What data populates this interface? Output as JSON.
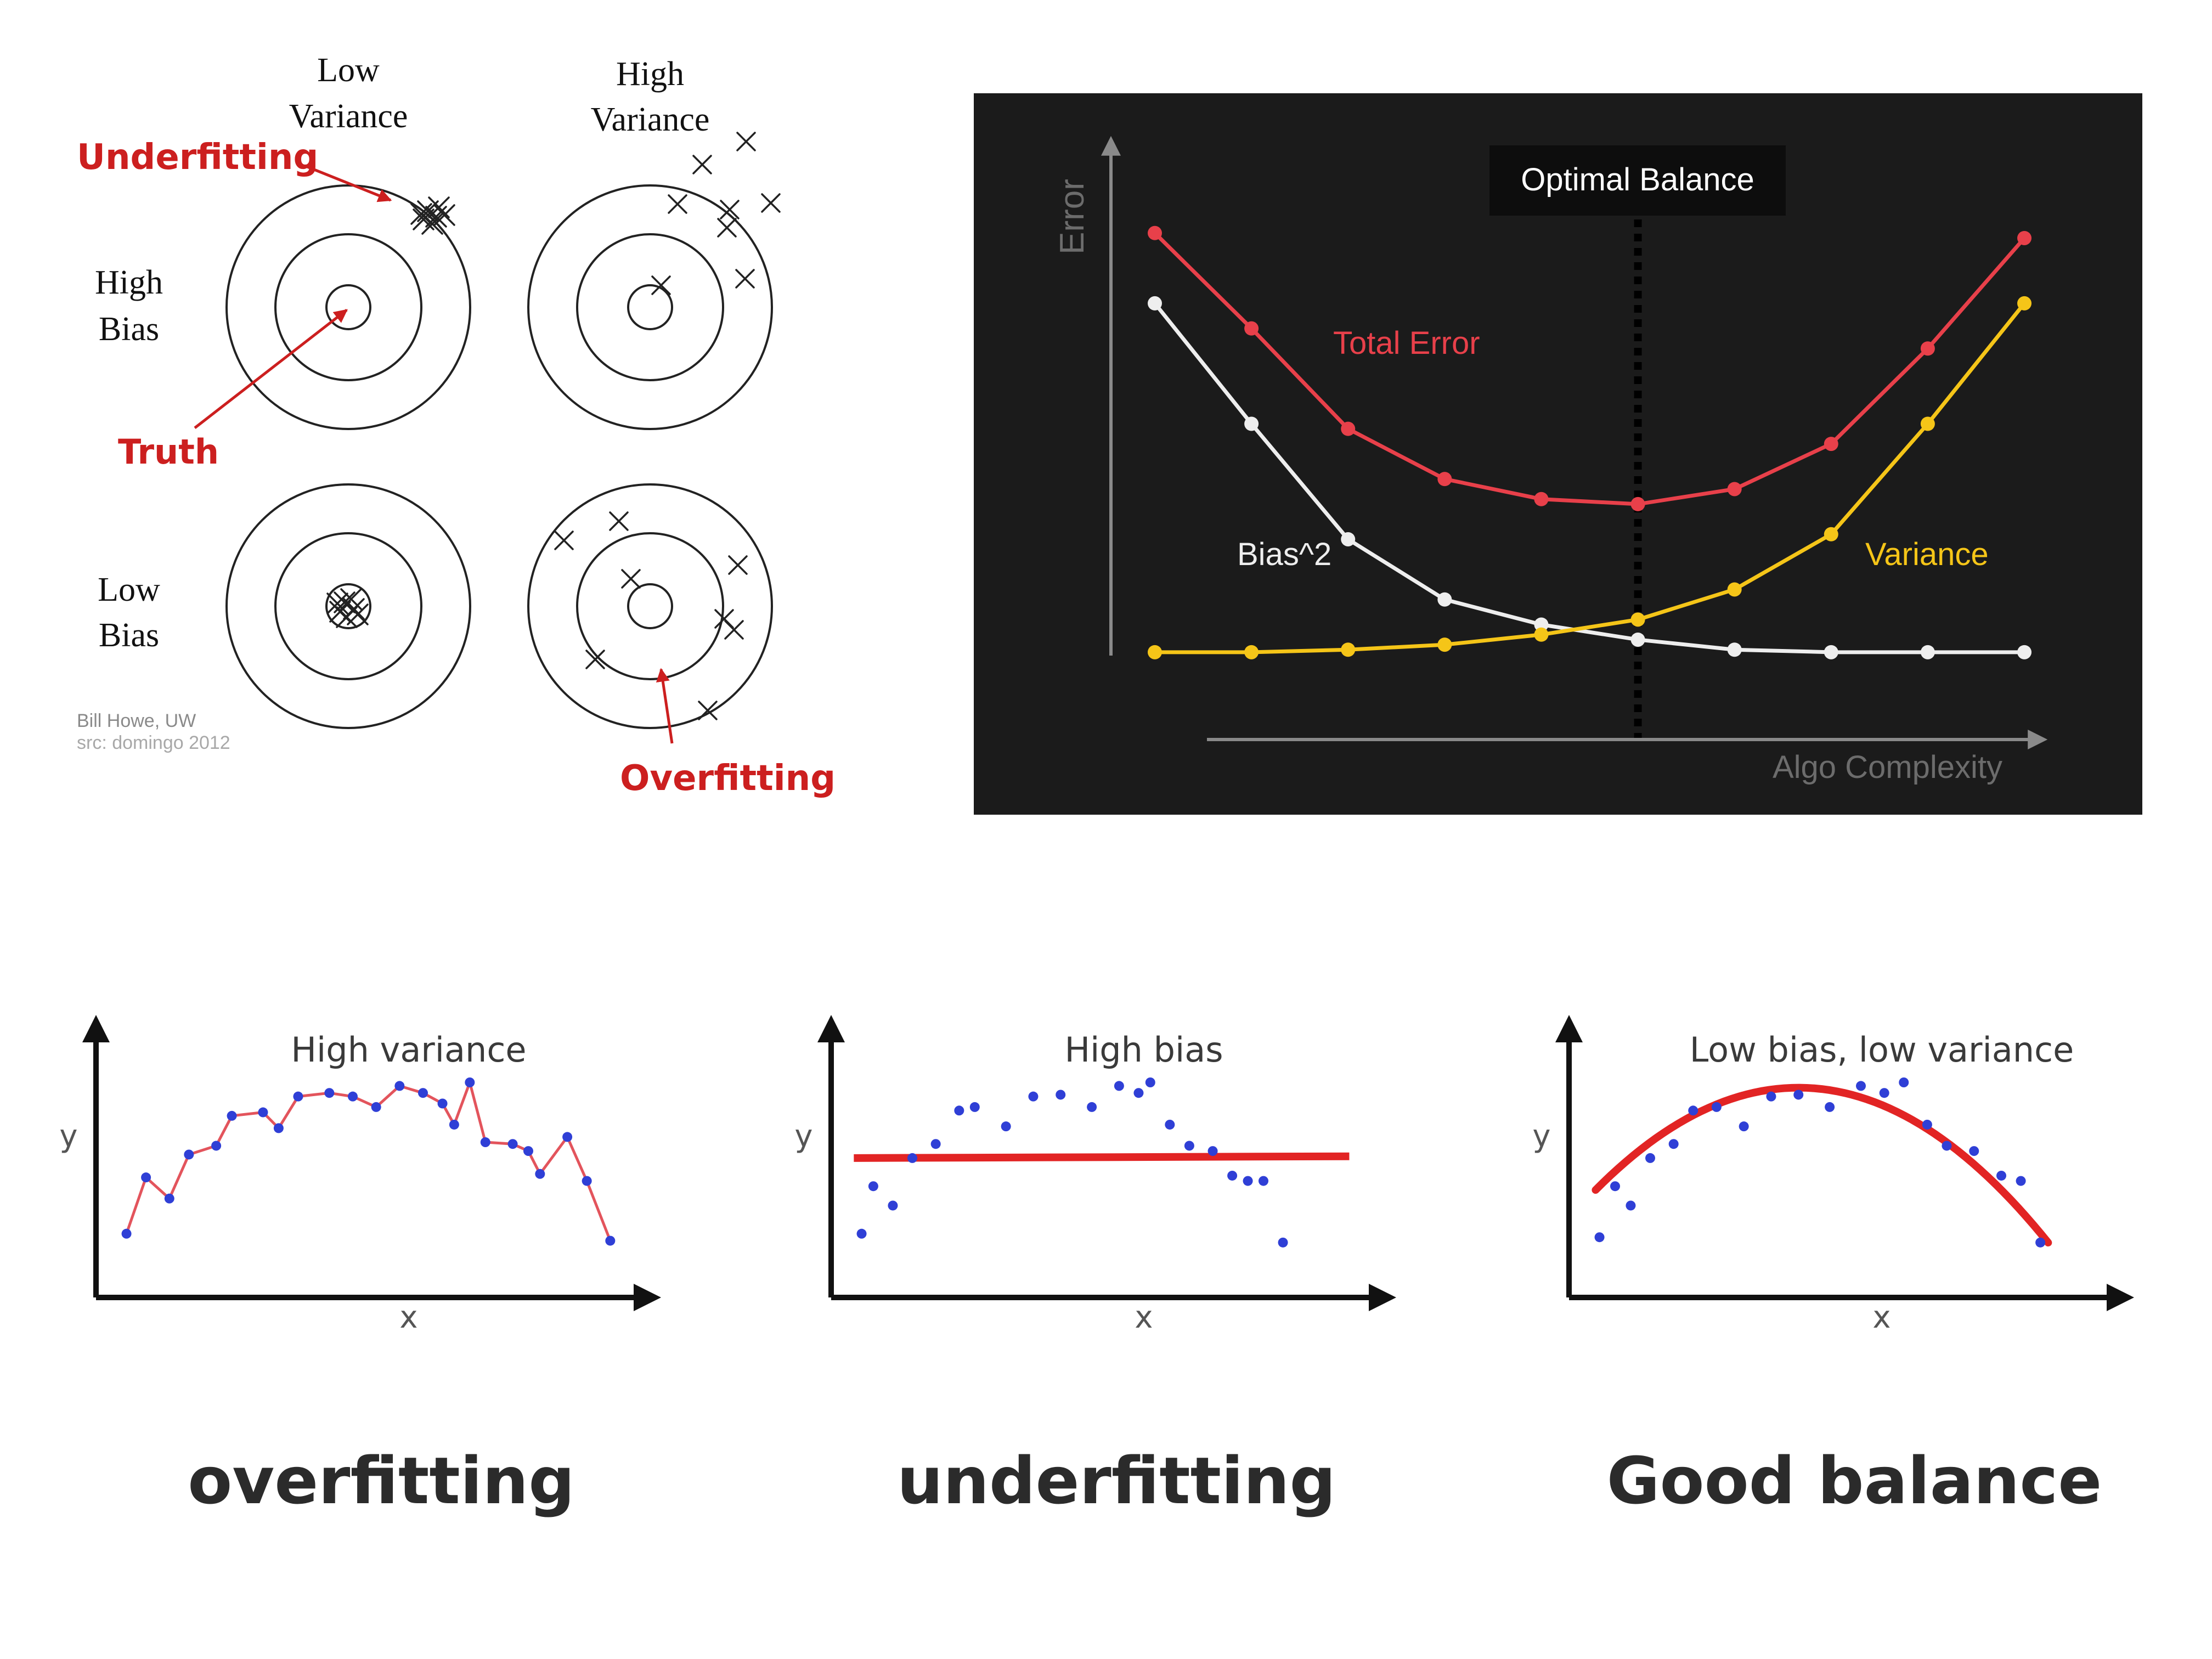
{
  "targets": {
    "col_labels": [
      "Low Variance",
      "High Variance"
    ],
    "row_labels": [
      "High Bias",
      "Low Bias"
    ],
    "annotations": {
      "underfitting": "Underfitting",
      "truth": "Truth",
      "overfitting": "Overfitting"
    },
    "credit": [
      "Bill Howe, UW",
      "src: domingo 2012"
    ],
    "colors": {
      "annotation": "#cc1f1f",
      "ink": "#111111"
    }
  },
  "tradeoff": {
    "optimal_label": "Optimal Balance",
    "y_axis_label": "Error",
    "x_axis_label": "Algo Complexity",
    "colors": {
      "background": "#1b1b1b",
      "total": "#e8404a",
      "bias": "#eeeeee",
      "variance": "#f5c518",
      "axis": "#8a8a8a"
    }
  },
  "fits": [
    {
      "title": "High variance",
      "caption": "overfitting",
      "x_label": "x",
      "y_label": "y"
    },
    {
      "title": "High bias",
      "caption": "underfitting",
      "x_label": "x",
      "y_label": "y"
    },
    {
      "title": "Low bias, low variance",
      "caption": "Good balance",
      "x_label": "x",
      "y_label": "y"
    }
  ],
  "chart_data": [
    {
      "type": "line",
      "title": "",
      "xlabel": "Algo Complexity",
      "ylabel": "Error",
      "x": [
        1,
        2,
        3,
        4,
        5,
        6,
        7,
        8,
        9,
        10
      ],
      "series": [
        {
          "name": "Total Error",
          "values": [
            0.88,
            0.69,
            0.49,
            0.39,
            0.35,
            0.34,
            0.37,
            0.46,
            0.65,
            0.87
          ],
          "color": "#e8404a"
        },
        {
          "name": "Bias^2",
          "values": [
            0.74,
            0.5,
            0.27,
            0.15,
            0.1,
            0.07,
            0.05,
            0.045,
            0.045,
            0.045
          ],
          "color": "#eeeeee"
        },
        {
          "name": "Variance",
          "values": [
            0.045,
            0.045,
            0.05,
            0.06,
            0.08,
            0.11,
            0.17,
            0.28,
            0.5,
            0.74
          ],
          "color": "#f5c518"
        }
      ],
      "optimal_x": 6,
      "xlim": [
        0.5,
        10.5
      ],
      "ylim": [
        0,
        1
      ],
      "grid": false,
      "legend": "inline labels"
    },
    {
      "type": "scatter",
      "title": "High variance",
      "xlabel": "x",
      "ylabel": "y",
      "x": [
        0.5,
        1.0,
        1.6,
        2.1,
        2.8,
        3.2,
        4.0,
        4.4,
        4.9,
        5.7,
        6.3,
        6.9,
        7.5,
        8.1,
        8.6,
        8.9,
        9.3,
        9.7,
        10.4,
        10.8,
        11.1,
        11.8,
        12.3,
        12.9
      ],
      "series": [
        {
          "name": "",
          "values": [
            0.3,
            0.62,
            0.5,
            0.75,
            0.8,
            0.97,
            0.99,
            0.9,
            1.08,
            1.1,
            1.08,
            1.02,
            1.14,
            1.1,
            1.04,
            0.92,
            1.16,
            0.82,
            0.81,
            0.77,
            0.64,
            0.85,
            0.6,
            0.26
          ]
        }
      ],
      "fit": "connect-the-dots",
      "fit_color": "#e3545c",
      "point_color": "#2f3fd6",
      "xlim": [
        0,
        13.5
      ],
      "ylim": [
        0,
        1.45
      ]
    },
    {
      "type": "scatter",
      "title": "High bias",
      "xlabel": "x",
      "ylabel": "y",
      "x": [
        0.5,
        0.8,
        1.3,
        1.8,
        2.4,
        3.0,
        3.4,
        4.2,
        4.9,
        5.6,
        6.4,
        7.1,
        7.6,
        7.9,
        8.4,
        8.9,
        9.5,
        10.0,
        10.4,
        10.8,
        11.3
      ],
      "series": [
        {
          "name": "",
          "values": [
            0.3,
            0.57,
            0.46,
            0.73,
            0.81,
            1.0,
            1.02,
            0.91,
            1.08,
            1.09,
            1.02,
            1.14,
            1.1,
            1.16,
            0.92,
            0.8,
            0.77,
            0.63,
            0.6,
            0.6,
            0.25
          ]
        }
      ],
      "fit": "constant",
      "fit_values": [
        0.73,
        0.74
      ],
      "fit_color": "#e22424",
      "point_color": "#2f3fd6",
      "xlim": [
        0,
        13.5
      ],
      "ylim": [
        0,
        1.45
      ]
    },
    {
      "type": "scatter",
      "title": "Low bias, low variance",
      "xlabel": "x",
      "ylabel": "y",
      "x": [
        0.5,
        0.9,
        1.3,
        1.8,
        2.4,
        2.9,
        3.5,
        4.2,
        4.9,
        5.6,
        6.4,
        7.2,
        7.8,
        8.3,
        8.9,
        9.4,
        10.1,
        10.8,
        11.3,
        11.8
      ],
      "series": [
        {
          "name": "",
          "values": [
            0.28,
            0.57,
            0.46,
            0.73,
            0.81,
            1.0,
            1.02,
            0.91,
            1.08,
            1.09,
            1.02,
            1.14,
            1.1,
            1.16,
            0.92,
            0.8,
            0.77,
            0.63,
            0.6,
            0.25
          ]
        }
      ],
      "fit": "quadratic",
      "fit_color": "#e22424",
      "point_color": "#2f3fd6",
      "xlim": [
        0,
        13.5
      ],
      "ylim": [
        0,
        1.45
      ]
    }
  ]
}
